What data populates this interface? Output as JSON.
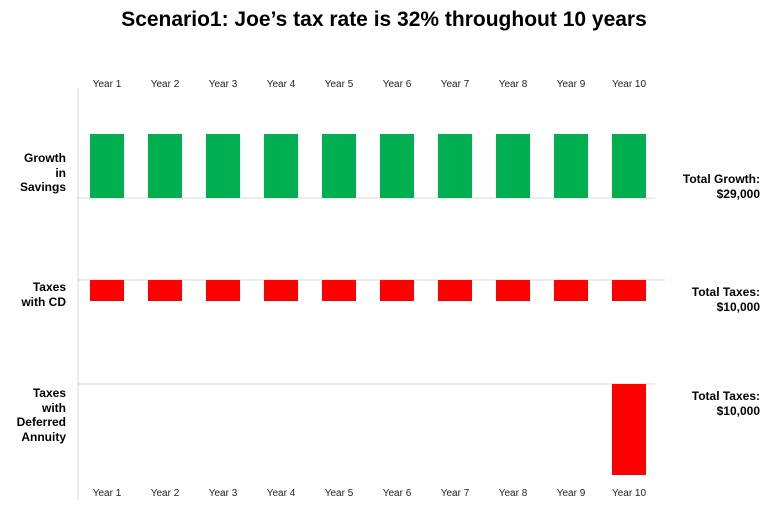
{
  "chart_data": {
    "type": "bar",
    "title": "Scenario1: Joe’s tax rate is 32% throughout 10 years",
    "categories": [
      "Year 1",
      "Year 2",
      "Year 3",
      "Year 4",
      "Year 5",
      "Year 6",
      "Year 7",
      "Year 8",
      "Year 9",
      "Year 10"
    ],
    "grid": false,
    "panels": [
      {
        "label": "Growth\nin\nSavings",
        "color": "#00B050",
        "direction": "up",
        "values": [
          2900,
          2900,
          2900,
          2900,
          2900,
          2900,
          2900,
          2900,
          2900,
          2900
        ],
        "total_label": "Total Growth:",
        "total_value": "$29,000"
      },
      {
        "label": "Taxes\nwith CD",
        "color": "#FF0000",
        "direction": "down",
        "values": [
          1000,
          1000,
          1000,
          1000,
          1000,
          1000,
          1000,
          1000,
          1000,
          1000
        ],
        "total_label": "Total Taxes:",
        "total_value": "$10,000"
      },
      {
        "label": "Taxes\nwith\nDeferred\nAnnuity",
        "color": "#FF0000",
        "direction": "down",
        "values": [
          0,
          0,
          0,
          0,
          0,
          0,
          0,
          0,
          0,
          10000
        ],
        "total_label": "Total Taxes:",
        "total_value": "$10,000"
      }
    ]
  }
}
